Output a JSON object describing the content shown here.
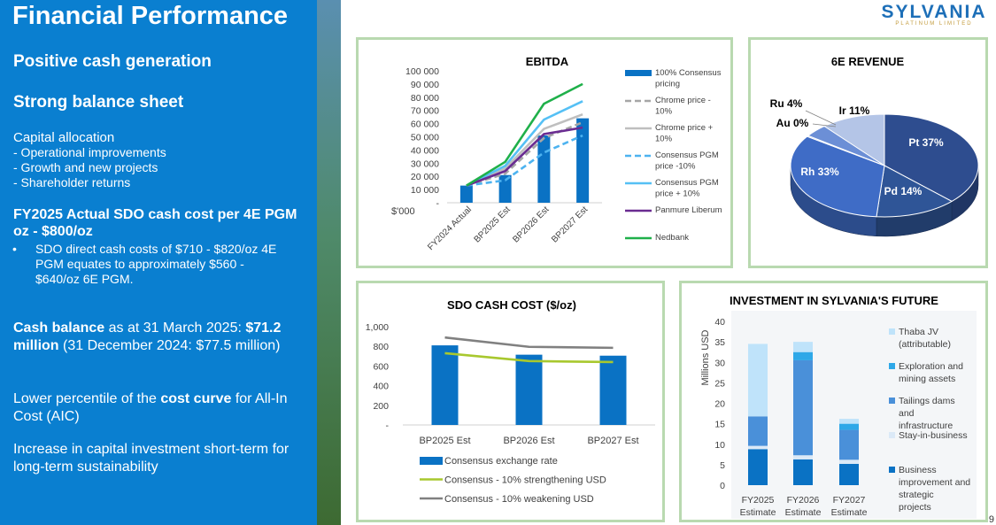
{
  "left": {
    "title": "Financial Performance",
    "h_cash": "Positive cash generation",
    "h_balance": "Strong balance sheet",
    "capital_heading": "Capital allocation",
    "capital_items": [
      "-   Operational improvements",
      "-   Growth and new projects",
      "-   Shareholder returns"
    ],
    "sdo_heading": "FY2025 Actual SDO cash cost per 4E PGM oz - $800/oz",
    "sdo_bullet_mark": "•",
    "sdo_bullet": "SDO direct cash costs of $710 - $820/oz 4E PGM equates to approximately $560 - $640/oz 6E PGM.",
    "cash_bold1": "Cash balance",
    "cash_text1": " as at 31 March 2025: ",
    "cash_bold2": "$71.2 million",
    "cash_text2": " (31 December 2024: $77.5 million)",
    "lower_text1": "Lower percentile of the ",
    "lower_bold": "cost curve",
    "lower_text2": " for All-In Cost (AIC)",
    "increase_text": "Increase in capital investment short-term for long-term sustainability"
  },
  "logo": {
    "name": "SYLVANIA",
    "sub": "PLATINUM LIMITED"
  },
  "page_number": "9",
  "chart_data": [
    {
      "id": "ebitda",
      "type": "bar",
      "title": "EBITDA",
      "ylabel": "$'000",
      "ylim": [
        0,
        100000
      ],
      "yticks": [
        "-",
        "10 000",
        "20 000",
        "30 000",
        "40 000",
        "50 000",
        "60 000",
        "70 000",
        "80 000",
        "90 000",
        "100 000"
      ],
      "categories": [
        "FY2024 Actual",
        "BP2025 Est",
        "BP2026 Est",
        "BP2027 Est"
      ],
      "bar_series": {
        "name": "100% Consensus pricing",
        "color": "#0a72c4",
        "values": [
          13000,
          21000,
          51000,
          64000
        ]
      },
      "line_series": [
        {
          "name": "Chrome price - 10%",
          "color": "#a6a6a6",
          "dash": true,
          "values": [
            13000,
            22000,
            49000,
            61000
          ]
        },
        {
          "name": "Chrome price + 10%",
          "color": "#bfbfbf",
          "dash": false,
          "values": [
            13000,
            26000,
            56000,
            67000
          ]
        },
        {
          "name": "Consensus PGM price -10%",
          "color": "#4db3f0",
          "dash": true,
          "values": [
            13000,
            17000,
            38000,
            51000
          ]
        },
        {
          "name": "Consensus PGM price + 10%",
          "color": "#55c0f5",
          "dash": false,
          "values": [
            13000,
            28000,
            63000,
            77000
          ]
        },
        {
          "name": "Panmure Liberum",
          "color": "#6a2c91",
          "dash": false,
          "values": [
            13000,
            24000,
            52000,
            57000
          ]
        },
        {
          "name": "Nedbank",
          "color": "#1fb04a",
          "dash": false,
          "values": [
            13000,
            31000,
            75000,
            90000
          ]
        }
      ]
    },
    {
      "id": "revenue",
      "type": "pie",
      "title": "6E REVENUE",
      "slices": [
        {
          "label": "Pt 37%",
          "value": 37,
          "color": "#2e4d8f"
        },
        {
          "label": "Pd 14%",
          "value": 14,
          "color": "#2f5597"
        },
        {
          "label": "Rh 33%",
          "value": 33,
          "color": "#3f6cc6"
        },
        {
          "label": "Au 0%",
          "value": 0.3,
          "color": "#7f9fd9"
        },
        {
          "label": "Ru 4%",
          "value": 4,
          "color": "#6c8fd6"
        },
        {
          "label": "Ir 11%",
          "value": 11,
          "color": "#b4c5e7"
        }
      ]
    },
    {
      "id": "sdo",
      "type": "bar",
      "title": "SDO CASH COST ($/oz)",
      "ylim": [
        0,
        1000
      ],
      "yticks": [
        "-",
        "200",
        "400",
        "600",
        "800",
        "1,000"
      ],
      "categories": [
        "BP2025 Est",
        "BP2026 Est",
        "BP2027 Est"
      ],
      "bar_series": {
        "name": "Consensus exchange rate",
        "color": "#0a72c4",
        "values": [
          810,
          715,
          705
        ]
      },
      "line_series": [
        {
          "name": "Consensus - 10% strengthening USD",
          "color": "#a8c82e",
          "values": [
            730,
            650,
            640
          ]
        },
        {
          "name": "Consensus - 10% weakening USD",
          "color": "#808080",
          "values": [
            890,
            795,
            785
          ]
        }
      ]
    },
    {
      "id": "investment",
      "type": "stacked_bar",
      "title": "INVESTMENT IN SYLVANIA'S FUTURE",
      "ylabel": "Millions USD",
      "ylim": [
        0,
        40
      ],
      "yticks": [
        "0",
        "5",
        "10",
        "15",
        "20",
        "25",
        "30",
        "35",
        "40"
      ],
      "categories": [
        "FY2025\nEstimate",
        "FY2026\nEstimate",
        "FY2027\nEstimate"
      ],
      "series": [
        {
          "name": "Business improvement and strategic projects",
          "color": "#0a72c4",
          "values": [
            8.8,
            6.3,
            5.2
          ]
        },
        {
          "name": "Stay-in-business",
          "color": "#dbe9f7",
          "values": [
            0.8,
            1.0,
            1.0
          ]
        },
        {
          "name": "Tailings dams and infrastructure",
          "color": "#4a90d9",
          "values": [
            7.2,
            23.2,
            7.3
          ]
        },
        {
          "name": "Exploration and mining assets",
          "color": "#2ea8e8",
          "values": [
            0,
            2.0,
            1.5
          ]
        },
        {
          "name": "Thaba JV (attributable)",
          "color": "#bfe3fa",
          "values": [
            17.7,
            2.5,
            1.2
          ]
        }
      ],
      "legend_order": [
        "Thaba JV (attributable)",
        "Exploration and mining assets",
        "Tailings dams and infrastructure",
        "Stay-in-business",
        "Business improvement and strategic projects"
      ]
    }
  ]
}
